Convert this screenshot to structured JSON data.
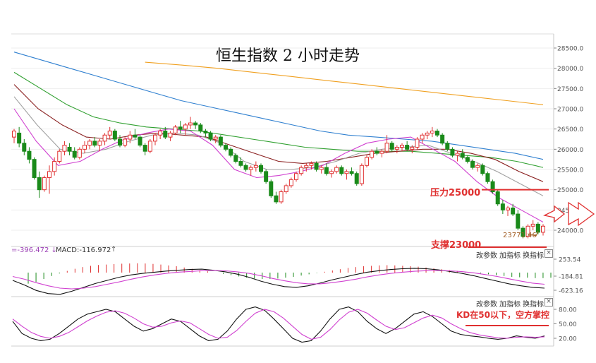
{
  "title": "恒生指数 2 小时走势",
  "annotations": {
    "resistance": "压力25000",
    "support": "支撑23000",
    "low_value": "23771.46",
    "kd_note": "KD在50以下，空方掌控"
  },
  "macd_panel": {
    "dif_readout": "-396.472",
    "macd_readout": "MACD:-116.972",
    "buttons": [
      "改参数",
      "加指标",
      "换指标"
    ],
    "close": "×"
  },
  "kd_panel": {
    "buttons": [
      "改参数",
      "加指标",
      "换指标"
    ],
    "close": "×"
  },
  "colors": {
    "up": "#e03030",
    "down": "#1a8a1a",
    "ma_gold": "#f0a020",
    "ma_blue": "#3080d0",
    "ma_green": "#30a030",
    "ma_brown": "#8a2020",
    "ma_magenta": "#d040d0",
    "ma_gray": "#a0a0a0",
    "annotation_red": "#e03030"
  },
  "chart_data": [
    {
      "type": "candlestick",
      "title": "恒生指数 2 小时走势",
      "y_ticks": [
        28500.0,
        28000.0,
        27500.0,
        27000.0,
        26500.0,
        26000.0,
        25500.0,
        25000.0,
        24500.0,
        24000.0
      ],
      "y_tick_labels": [
        "28500.0",
        "28000.0",
        "27500.0",
        "27000.0",
        "26500.0",
        "26000.0",
        "25500.0",
        "25000.0",
        "24500.0",
        "24000.0"
      ],
      "ylim": [
        23780,
        28800
      ],
      "resistance": 25000,
      "low_marker": 23771.46,
      "candles": [
        [
          26300,
          26500,
          26150,
          26450
        ],
        [
          26400,
          26550,
          26050,
          26150
        ],
        [
          26150,
          26250,
          25850,
          25950
        ],
        [
          25950,
          26050,
          25650,
          25750
        ],
        [
          25750,
          25800,
          25250,
          25300
        ],
        [
          25300,
          25450,
          24800,
          25000
        ],
        [
          25000,
          25350,
          24950,
          25300
        ],
        [
          25300,
          25600,
          24900,
          25450
        ],
        [
          25450,
          25800,
          25350,
          25700
        ],
        [
          25700,
          26000,
          25650,
          25950
        ],
        [
          25950,
          26200,
          25850,
          26100
        ],
        [
          26050,
          26150,
          25850,
          25950
        ],
        [
          25950,
          26050,
          25750,
          25800
        ],
        [
          25800,
          26050,
          25750,
          26000
        ],
        [
          26000,
          26200,
          25900,
          26100
        ],
        [
          26100,
          26250,
          26000,
          26200
        ],
        [
          26200,
          26300,
          26050,
          26100
        ],
        [
          26100,
          26250,
          25950,
          26200
        ],
        [
          26200,
          26400,
          26100,
          26350
        ],
        [
          26350,
          26550,
          26250,
          26450
        ],
        [
          26450,
          26500,
          26200,
          26250
        ],
        [
          26250,
          26350,
          26050,
          26100
        ],
        [
          26100,
          26300,
          26050,
          26250
        ],
        [
          26250,
          26450,
          26150,
          26350
        ],
        [
          26350,
          26500,
          26250,
          26300
        ],
        [
          26300,
          26350,
          26050,
          26100
        ],
        [
          26100,
          26150,
          25850,
          25950
        ],
        [
          25950,
          26250,
          25900,
          26200
        ],
        [
          26200,
          26400,
          26100,
          26350
        ],
        [
          26350,
          26500,
          26250,
          26450
        ],
        [
          26450,
          26550,
          26250,
          26300
        ],
        [
          26300,
          26450,
          26200,
          26400
        ],
        [
          26400,
          26600,
          26350,
          26550
        ],
        [
          26550,
          26700,
          26400,
          26500
        ],
        [
          26500,
          26650,
          26350,
          26600
        ],
        [
          26600,
          26800,
          26500,
          26650
        ],
        [
          26650,
          26700,
          26500,
          26600
        ],
        [
          26600,
          26650,
          26400,
          26450
        ],
        [
          26450,
          26500,
          26300,
          26400
        ],
        [
          26400,
          26450,
          26200,
          26250
        ],
        [
          26250,
          26350,
          26150,
          26300
        ],
        [
          26300,
          26350,
          26050,
          26100
        ],
        [
          26100,
          26150,
          25950,
          26000
        ],
        [
          26000,
          26050,
          25800,
          25850
        ],
        [
          25850,
          25900,
          25650,
          25700
        ],
        [
          25700,
          25800,
          25550,
          25600
        ],
        [
          25600,
          25650,
          25450,
          25500
        ],
        [
          25500,
          25600,
          25350,
          25550
        ],
        [
          25550,
          25700,
          25450,
          25600
        ],
        [
          25600,
          25650,
          25400,
          25450
        ],
        [
          25450,
          25500,
          25150,
          25200
        ],
        [
          25200,
          25250,
          24800,
          24850
        ],
        [
          24850,
          24950,
          24650,
          24700
        ],
        [
          24700,
          25000,
          24650,
          24950
        ],
        [
          24950,
          25150,
          24900,
          25100
        ],
        [
          25100,
          25300,
          25050,
          25250
        ],
        [
          25250,
          25450,
          25200,
          25400
        ],
        [
          25400,
          25600,
          25350,
          25550
        ],
        [
          25550,
          25650,
          25450,
          25600
        ],
        [
          25600,
          25700,
          25500,
          25650
        ],
        [
          25650,
          25700,
          25450,
          25500
        ],
        [
          25500,
          25600,
          25400,
          25550
        ],
        [
          25550,
          25650,
          25350,
          25400
        ],
        [
          25400,
          25500,
          25300,
          25450
        ],
        [
          25450,
          25600,
          25400,
          25550
        ],
        [
          25550,
          25600,
          25350,
          25400
        ],
        [
          25400,
          25500,
          25250,
          25450
        ],
        [
          25450,
          25550,
          25350,
          25400
        ],
        [
          25400,
          25450,
          25100,
          25150
        ],
        [
          25150,
          25650,
          25100,
          25600
        ],
        [
          25600,
          25850,
          25550,
          25800
        ],
        [
          25800,
          26000,
          25750,
          25950
        ],
        [
          25950,
          26050,
          25850,
          25900
        ],
        [
          25900,
          26000,
          25800,
          25950
        ],
        [
          25950,
          26350,
          25900,
          26150
        ],
        [
          26150,
          26200,
          25950,
          26000
        ],
        [
          26000,
          26100,
          25900,
          26050
        ],
        [
          26050,
          26150,
          25950,
          26100
        ],
        [
          26100,
          26200,
          25950,
          26000
        ],
        [
          26000,
          26100,
          25900,
          26050
        ],
        [
          26050,
          26300,
          26000,
          26250
        ],
        [
          26250,
          26400,
          26150,
          26350
        ],
        [
          26350,
          26450,
          26250,
          26400
        ],
        [
          26400,
          26550,
          26300,
          26450
        ],
        [
          26450,
          26500,
          26300,
          26350
        ],
        [
          26350,
          26400,
          26100,
          26150
        ],
        [
          26150,
          26200,
          25950,
          26000
        ],
        [
          26000,
          26050,
          25800,
          25850
        ],
        [
          25850,
          25950,
          25700,
          25900
        ],
        [
          25900,
          26000,
          25750,
          25800
        ],
        [
          25800,
          25850,
          25650,
          25700
        ],
        [
          25700,
          25750,
          25500,
          25550
        ],
        [
          25550,
          25650,
          25450,
          25600
        ],
        [
          25600,
          25650,
          25350,
          25400
        ],
        [
          25400,
          25450,
          25150,
          25200
        ],
        [
          25200,
          25250,
          24900,
          24950
        ],
        [
          24950,
          25000,
          24600,
          24650
        ],
        [
          24650,
          24750,
          24400,
          24500
        ],
        [
          24500,
          24600,
          24350,
          24550
        ],
        [
          24550,
          24650,
          24350,
          24400
        ],
        [
          24400,
          24500,
          24000,
          24050
        ],
        [
          24050,
          24100,
          23800,
          23850
        ],
        [
          23850,
          24150,
          23800,
          24100
        ],
        [
          24100,
          24250,
          24000,
          24150
        ],
        [
          24150,
          24200,
          23900,
          23950
        ],
        [
          23950,
          24150,
          23870,
          24100
        ]
      ],
      "ma_series": [
        {
          "color_key": "ma_gold",
          "start": 26,
          "values": [
            28150,
            28080,
            28000,
            27900,
            27800,
            27700,
            27600,
            27500,
            27400,
            27300,
            27200,
            27100
          ]
        },
        {
          "color_key": "ma_blue",
          "start": 0,
          "values": [
            28400,
            28200,
            28000,
            27800,
            27600,
            27400,
            27200,
            27050,
            26900,
            26750,
            26600,
            26450,
            26350,
            26300,
            26250,
            26200,
            26100,
            26000,
            25900,
            25750
          ]
        },
        {
          "color_key": "ma_green",
          "start": 0,
          "values": [
            27900,
            27500,
            27100,
            26800,
            26650,
            26550,
            26500,
            26450,
            26350,
            26250,
            26150,
            26050,
            26000,
            25950,
            25950,
            25950,
            25900,
            25850,
            25800,
            25700,
            25550
          ]
        },
        {
          "color_key": "ma_brown",
          "start": 0,
          "values": [
            27600,
            27000,
            26600,
            26300,
            26250,
            26350,
            26400,
            26350,
            26300,
            26100,
            25900,
            25700,
            25650,
            25700,
            25800,
            25900,
            25950,
            26000,
            26000,
            25900,
            25750,
            25450,
            25200
          ]
        },
        {
          "color_key": "ma_gray",
          "start": 0,
          "values": [
            27300,
            26600,
            26000,
            25900,
            26000,
            26200,
            26350,
            26400,
            26350,
            26150,
            25700,
            25500,
            25500,
            25550,
            25700,
            25900,
            26000,
            26050,
            26100,
            25900,
            25700,
            25450,
            25150,
            24850
          ]
        },
        {
          "color_key": "ma_magenta",
          "start": 0,
          "values": [
            27000,
            26200,
            25600,
            25700,
            26000,
            26250,
            26400,
            26500,
            26450,
            26100,
            25500,
            25300,
            25350,
            25450,
            25600,
            25900,
            26150,
            26250,
            26300,
            26000,
            25700,
            25200,
            24800,
            24500,
            24200
          ]
        }
      ]
    },
    {
      "type": "bar",
      "name": "MACD",
      "y_tick_labels": [
        "253.54",
        "-184.81",
        "-623.16"
      ],
      "histogram": [
        -260,
        -220,
        -150,
        -80,
        -20,
        40,
        90,
        130,
        160,
        180,
        190,
        200,
        210,
        215,
        220,
        215,
        205,
        190,
        170,
        150,
        120,
        90,
        60,
        30,
        0,
        -30,
        -60,
        -90,
        -120,
        -140,
        -150,
        -150,
        -140,
        -120,
        -100,
        -70,
        -40,
        -10,
        20,
        50,
        80,
        110,
        130,
        150,
        160,
        170,
        175,
        170,
        160,
        150,
        140,
        120,
        100,
        80,
        60,
        40,
        20,
        0,
        -20,
        -40,
        -60,
        -80,
        -100,
        -110,
        -120,
        -130,
        -130,
        -120
      ],
      "dif": [
        -200,
        -320,
        -460,
        -540,
        -560,
        -480,
        -380,
        -280,
        -200,
        -120,
        -60,
        -20,
        10,
        40,
        60,
        80,
        90,
        60,
        20,
        -40,
        -120,
        -220,
        -300,
        -360,
        -380,
        -340,
        -270,
        -190,
        -120,
        -50,
        10,
        50,
        80,
        100,
        110,
        100,
        70,
        30,
        -20,
        -80,
        -150,
        -220,
        -290,
        -340,
        -380,
        -400
      ],
      "dea": [
        -100,
        -170,
        -260,
        -340,
        -400,
        -420,
        -400,
        -360,
        -300,
        -240,
        -170,
        -110,
        -60,
        -20,
        10,
        30,
        50,
        55,
        45,
        20,
        -20,
        -80,
        -150,
        -210,
        -260,
        -290,
        -290,
        -260,
        -220,
        -170,
        -110,
        -60,
        -20,
        10,
        35,
        50,
        55,
        45,
        25,
        -5,
        -50,
        -100,
        -160,
        -220,
        -270,
        -300
      ]
    },
    {
      "type": "line",
      "name": "KD",
      "y_tick_labels": [
        "80.00",
        "50.00",
        "20.00"
      ],
      "ylim": [
        10,
        90
      ],
      "K": [
        55,
        30,
        20,
        15,
        18,
        30,
        45,
        60,
        70,
        75,
        80,
        75,
        60,
        45,
        35,
        40,
        50,
        60,
        55,
        40,
        25,
        15,
        18,
        35,
        60,
        80,
        85,
        78,
        60,
        40,
        20,
        12,
        15,
        35,
        60,
        80,
        85,
        75,
        55,
        40,
        30,
        40,
        55,
        70,
        75,
        65,
        50,
        35,
        28,
        25,
        23,
        20,
        18,
        20,
        25,
        22,
        20,
        25
      ],
      "D": [
        60,
        45,
        32,
        24,
        20,
        24,
        32,
        44,
        56,
        66,
        74,
        77,
        72,
        62,
        50,
        43,
        45,
        52,
        56,
        52,
        40,
        28,
        20,
        22,
        36,
        55,
        72,
        80,
        75,
        62,
        45,
        28,
        18,
        22,
        38,
        58,
        74,
        80,
        72,
        58,
        45,
        38,
        42,
        52,
        62,
        68,
        62,
        50,
        40,
        32,
        27,
        24,
        21,
        20,
        22,
        23,
        22,
        23
      ]
    }
  ]
}
